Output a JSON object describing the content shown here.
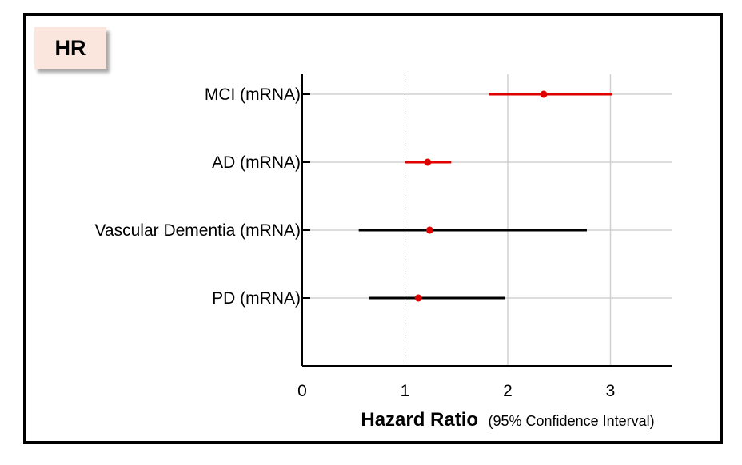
{
  "badge": "HR",
  "chart_data": {
    "type": "forest",
    "categories": [
      "MCI (mRNA)",
      "AD (mRNA)",
      "Vascular Dementia (mRNA)",
      "PD (mRNA)"
    ],
    "series": [
      {
        "hr": 2.35,
        "lower": 1.82,
        "upper": 3.02,
        "color": "#e00000"
      },
      {
        "hr": 1.22,
        "lower": 1.0,
        "upper": 1.45,
        "color": "#e00000"
      },
      {
        "hr": 1.24,
        "lower": 0.55,
        "upper": 2.77,
        "color": "#000000"
      },
      {
        "hr": 1.13,
        "lower": 0.65,
        "upper": 1.97,
        "color": "#000000"
      }
    ],
    "xticks": [
      "0",
      "1",
      "2",
      "3"
    ],
    "xlim": [
      0,
      3.6
    ],
    "reference_line": 1,
    "xlabel_bold": "Hazard Ratio",
    "xlabel_rest": "(95% Confidence Interval)",
    "grid": "vertical"
  }
}
